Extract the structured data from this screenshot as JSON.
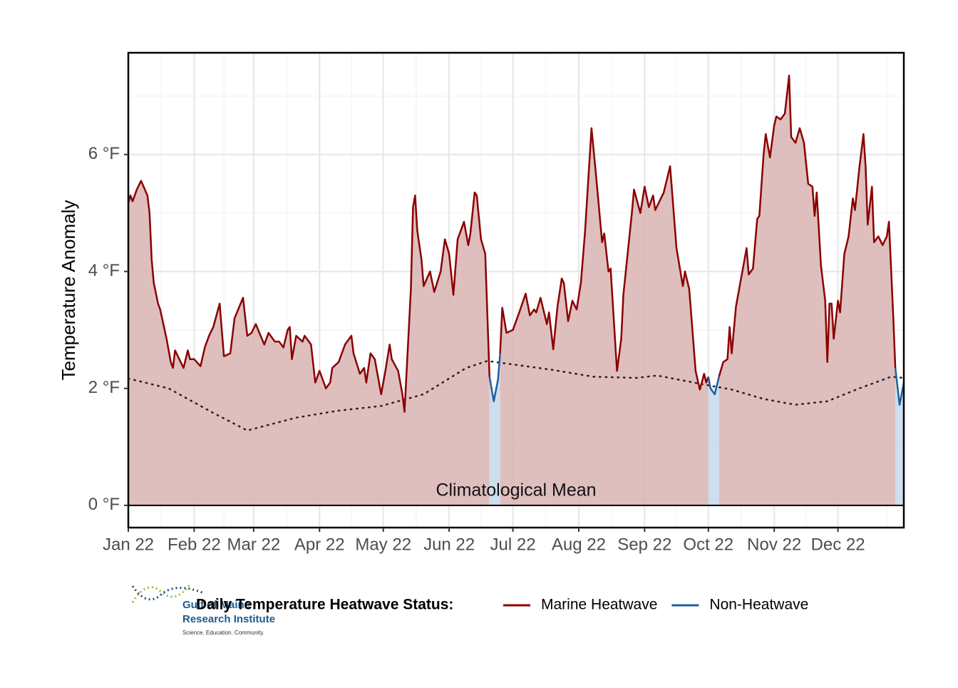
{
  "chart_data": {
    "type": "area-line",
    "y_label": "Temperature Anomaly",
    "annotation": "Climatological Mean",
    "legend_title": "Daily Temperature Heatwave Status:",
    "legend_position": "bottom",
    "grid": true,
    "xlim": [
      1,
      366
    ],
    "ylim": [
      -0.38,
      7.74
    ],
    "xticks": [
      {
        "value": 1,
        "label": "Jan 22"
      },
      {
        "value": 32,
        "label": "Feb 22"
      },
      {
        "value": 60,
        "label": "Mar 22"
      },
      {
        "value": 91,
        "label": "Apr 22"
      },
      {
        "value": 121,
        "label": "May 22"
      },
      {
        "value": 152,
        "label": "Jun 22"
      },
      {
        "value": 182,
        "label": "Jul 22"
      },
      {
        "value": 213,
        "label": "Aug 22"
      },
      {
        "value": 244,
        "label": "Sep 22"
      },
      {
        "value": 274,
        "label": "Oct 22"
      },
      {
        "value": 305,
        "label": "Nov 22"
      },
      {
        "value": 335,
        "label": "Dec 22"
      }
    ],
    "yticks": [
      {
        "value": 0,
        "label": "0 °F"
      },
      {
        "value": 2,
        "label": "2 °F"
      },
      {
        "value": 4,
        "label": "4 °F"
      },
      {
        "value": 6,
        "label": "6 °F"
      }
    ],
    "series": [
      {
        "name": "Marine Heatwave",
        "color": "#8b0000",
        "fill": "#d9b3b3",
        "x": [
          1,
          2,
          3,
          5,
          7,
          10,
          11,
          12,
          13,
          15,
          16,
          19,
          21,
          22,
          23,
          25,
          27,
          29,
          30,
          32,
          35,
          37,
          39,
          41,
          44,
          46,
          49,
          51,
          55,
          57,
          59,
          61,
          65,
          67,
          70,
          72,
          74,
          76,
          77,
          78,
          80,
          83,
          84,
          87,
          89,
          91,
          94,
          96,
          97,
          100,
          103,
          106,
          107,
          110,
          112,
          113,
          115,
          117,
          120,
          122,
          124,
          125,
          128,
          130,
          131,
          133,
          134,
          135,
          136,
          137,
          139,
          140,
          143,
          145,
          148,
          150,
          152,
          154,
          156,
          159,
          161,
          162,
          164,
          165,
          167,
          169,
          171,
          null,
          176,
          177,
          179,
          182,
          185,
          188,
          190,
          192,
          193,
          195,
          198,
          199,
          201,
          203,
          205,
          206,
          208,
          210,
          212,
          214,
          216,
          219,
          221,
          224,
          225,
          227,
          228,
          231,
          233,
          234,
          236,
          238,
          239,
          242,
          244,
          246,
          248,
          249,
          253,
          256,
          259,
          262,
          263,
          265,
          268,
          270,
          272,
          273,
          274,
          null,
          279,
          281,
          283,
          284,
          285,
          287,
          290,
          292,
          293,
          295,
          297,
          298,
          300,
          301,
          303,
          305,
          306,
          308,
          310,
          312,
          313,
          315,
          317,
          319,
          321,
          323,
          324,
          325,
          327,
          329,
          330,
          331,
          332,
          333,
          335,
          336,
          338,
          340,
          342,
          343,
          345,
          347,
          348,
          349,
          351,
          352,
          354,
          356,
          358,
          359,
          361,
          362
        ],
        "values": [
          5.17,
          5.3,
          5.2,
          5.4,
          5.55,
          5.3,
          5.0,
          4.2,
          3.8,
          3.45,
          3.35,
          2.85,
          2.45,
          2.35,
          2.65,
          2.5,
          2.35,
          2.65,
          2.5,
          2.5,
          2.38,
          2.7,
          2.9,
          3.05,
          3.45,
          2.55,
          2.6,
          3.2,
          3.55,
          2.9,
          2.95,
          3.1,
          2.75,
          2.95,
          2.8,
          2.8,
          2.7,
          3.0,
          3.05,
          2.5,
          2.9,
          2.8,
          2.9,
          2.75,
          2.1,
          2.3,
          2.0,
          2.1,
          2.35,
          2.45,
          2.75,
          2.9,
          2.6,
          2.25,
          2.35,
          2.1,
          2.6,
          2.5,
          1.9,
          2.3,
          2.75,
          2.5,
          2.3,
          1.9,
          1.6,
          3.0,
          3.7,
          5.1,
          5.3,
          4.7,
          4.2,
          3.75,
          4.0,
          3.65,
          4.0,
          4.55,
          4.3,
          3.6,
          4.55,
          4.85,
          4.45,
          4.65,
          5.35,
          5.3,
          4.55,
          4.3,
          2.2,
          null,
          2.6,
          3.38,
          2.95,
          3.0,
          3.3,
          3.62,
          3.25,
          3.35,
          3.3,
          3.55,
          3.1,
          3.3,
          2.67,
          3.4,
          3.88,
          3.8,
          3.15,
          3.5,
          3.35,
          3.8,
          4.7,
          6.45,
          5.7,
          4.5,
          4.65,
          4.0,
          4.05,
          2.3,
          2.85,
          3.6,
          4.3,
          5.0,
          5.4,
          5.0,
          5.45,
          5.1,
          5.3,
          5.05,
          5.35,
          5.8,
          4.4,
          3.75,
          4.0,
          3.7,
          2.3,
          1.98,
          2.25,
          2.1,
          2.2,
          null,
          2.2,
          2.45,
          2.5,
          3.05,
          2.6,
          3.4,
          4.0,
          4.4,
          3.95,
          4.05,
          4.9,
          4.95,
          6.0,
          6.35,
          5.95,
          6.5,
          6.65,
          6.6,
          6.7,
          7.35,
          6.3,
          6.2,
          6.45,
          6.2,
          5.5,
          5.45,
          4.95,
          5.35,
          4.1,
          3.5,
          2.45,
          3.45,
          3.45,
          2.85,
          3.5,
          3.3,
          4.3,
          4.6,
          5.25,
          5.05,
          5.75,
          6.35,
          5.8,
          4.8,
          5.45,
          4.5,
          4.6,
          4.45,
          4.6,
          4.85,
          3.25,
          2.35
        ]
      },
      {
        "name": "Non-Heatwave",
        "color": "#1f5f9e",
        "fill": "#c4d8ea",
        "x": [
          171,
          173,
          175,
          176,
          null,
          274,
          275,
          277,
          279,
          null,
          362,
          364,
          366
        ],
        "values": [
          2.2,
          1.78,
          2.15,
          2.6,
          null,
          2.2,
          2.0,
          1.9,
          2.2,
          null,
          2.35,
          1.72,
          2.1
        ]
      }
    ],
    "climatology": {
      "color": "#222222",
      "x": [
        1,
        20,
        40,
        57,
        80,
        100,
        120,
        140,
        160,
        170,
        180,
        200,
        220,
        240,
        250,
        270,
        285,
        300,
        315,
        330,
        345,
        360,
        366
      ],
      "values": [
        2.17,
        2.0,
        1.6,
        1.28,
        1.5,
        1.62,
        1.7,
        1.9,
        2.35,
        2.47,
        2.42,
        2.32,
        2.2,
        2.18,
        2.22,
        2.08,
        1.98,
        1.82,
        1.72,
        1.78,
        2.0,
        2.2,
        2.18
      ]
    },
    "logo": {
      "name": "Gulf of Maine",
      "line2": "Research Institute",
      "tagline": "Science. Education. Community."
    }
  }
}
